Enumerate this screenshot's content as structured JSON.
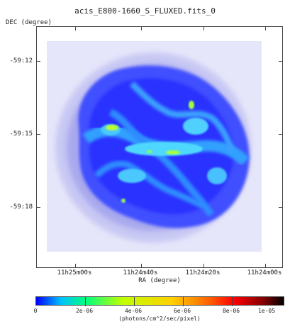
{
  "window": {
    "title": "acis_E800-1660_S_FLUXED.fits_0"
  },
  "axes": {
    "y_label": "DEC (degree)",
    "x_label": "RA (degree)",
    "y_ticks": [
      "-59:12",
      "-59:15",
      "-59:18"
    ],
    "x_ticks": [
      "11h25m00s",
      "11h24m40s",
      "11h24m20s",
      "11h24m00s"
    ]
  },
  "colorbar": {
    "tick_labels": [
      "0",
      "2e-06",
      "4e-06",
      "6e-06",
      "8e-06",
      "1e-05"
    ],
    "label": "(photons/cm^2/sec/pixel)",
    "colors": [
      "#0000ff",
      "#00c0ff",
      "#00ff80",
      "#c0ff00",
      "#ffd000",
      "#ff6000",
      "#ff0000",
      "#800000",
      "#000000"
    ]
  },
  "image": {
    "background_color": "#e6e6fa",
    "halo_color": "#a0a0f0",
    "core_color": "#2030ff",
    "bright_color": "#40d0ff",
    "peak_color": "#c0ff20"
  }
}
